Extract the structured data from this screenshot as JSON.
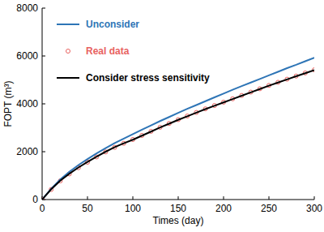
{
  "chart_data": {
    "type": "line",
    "x_label": "Times (day)",
    "y_label": "FOPT (m³)",
    "x": [
      0,
      10,
      20,
      30,
      40,
      50,
      60,
      70,
      80,
      90,
      100,
      110,
      120,
      130,
      140,
      150,
      160,
      170,
      180,
      190,
      200,
      210,
      220,
      230,
      240,
      250,
      260,
      270,
      280,
      290,
      300
    ],
    "series": [
      {
        "name": "Unconsider",
        "color": "#2e75b6",
        "line_style": "solid",
        "marker": "none",
        "values": [
          0,
          450,
          840,
          1160,
          1440,
          1690,
          1930,
          2150,
          2360,
          2550,
          2730,
          2920,
          3100,
          3280,
          3450,
          3620,
          3790,
          3950,
          4110,
          4270,
          4430,
          4590,
          4740,
          4890,
          5040,
          5190,
          5340,
          5490,
          5630,
          5780,
          5930
        ]
      },
      {
        "name": "Real data",
        "color": "#e8625f",
        "type": "scatter",
        "marker": "circle",
        "values": [
          0,
          420,
          780,
          1070,
          1330,
          1560,
          1780,
          1990,
          2180,
          2350,
          2510,
          2680,
          2850,
          3020,
          3180,
          3340,
          3490,
          3640,
          3790,
          3930,
          4070,
          4210,
          4350,
          4490,
          4630,
          4770,
          4900,
          5030,
          5160,
          5290,
          5420
        ]
      },
      {
        "name": "Consider stress sensitivity",
        "color": "#000000",
        "line_style": "solid",
        "marker": "none",
        "values": [
          0,
          430,
          790,
          1080,
          1340,
          1570,
          1790,
          2000,
          2190,
          2350,
          2500,
          2670,
          2840,
          3010,
          3170,
          3330,
          3480,
          3630,
          3780,
          3920,
          4060,
          4200,
          4340,
          4480,
          4620,
          4760,
          4890,
          5020,
          5150,
          5280,
          5410
        ]
      }
    ],
    "xlim": [
      0,
      300
    ],
    "xticks": [
      0,
      50,
      100,
      150,
      200,
      250,
      300
    ],
    "ylim": [
      0,
      8000
    ],
    "yticks": [
      0,
      2000,
      4000,
      6000,
      8000
    ],
    "grid": false,
    "legend": "upper left"
  }
}
